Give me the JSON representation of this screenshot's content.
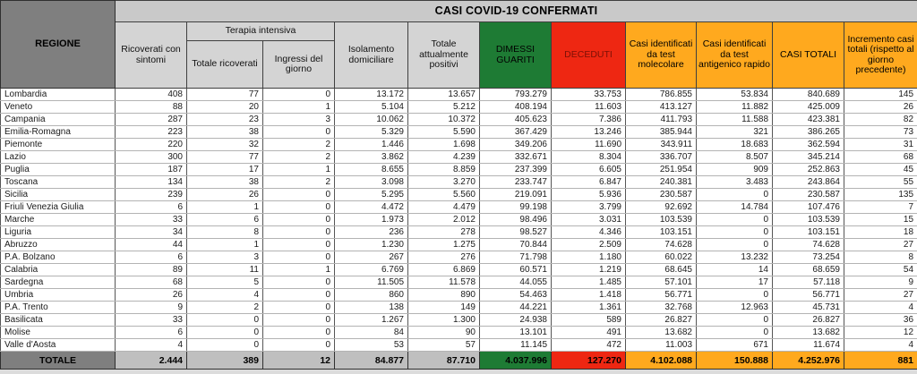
{
  "colors": {
    "green": "#1e7b34",
    "red": "#ee2712",
    "red-text": "#7b1006",
    "orange": "#ffa91e",
    "grey-dark": "#7f7f7f",
    "grey-band": "#c9c9c9",
    "grey-sub": "#d4d4d4",
    "grey-total": "#bfbfbf"
  },
  "chart_data": {
    "type": "table",
    "title": "CASI COVID-19 CONFERMATI",
    "group_header": "Terapia intensiva",
    "columns": [
      "REGIONE",
      "Ricoverati con sintomi",
      "Totale ricoverati",
      "Ingressi del giorno",
      "Isolamento domiciliare",
      "Totale attualmente positivi",
      "DIMESSI GUARITI",
      "DECEDUTI",
      "Casi identificati da test molecolare",
      "Casi identificati da test antigenico rapido",
      "CASI TOTALI",
      "Incremento casi totali (rispetto al giorno precedente)"
    ],
    "rows": [
      [
        "Lombardia",
        "408",
        "77",
        "0",
        "13.172",
        "13.657",
        "793.279",
        "33.753",
        "786.855",
        "53.834",
        "840.689",
        "145"
      ],
      [
        "Veneto",
        "88",
        "20",
        "1",
        "5.104",
        "5.212",
        "408.194",
        "11.603",
        "413.127",
        "11.882",
        "425.009",
        "26"
      ],
      [
        "Campania",
        "287",
        "23",
        "3",
        "10.062",
        "10.372",
        "405.623",
        "7.386",
        "411.793",
        "11.588",
        "423.381",
        "82"
      ],
      [
        "Emilia-Romagna",
        "223",
        "38",
        "0",
        "5.329",
        "5.590",
        "367.429",
        "13.246",
        "385.944",
        "321",
        "386.265",
        "73"
      ],
      [
        "Piemonte",
        "220",
        "32",
        "2",
        "1.446",
        "1.698",
        "349.206",
        "11.690",
        "343.911",
        "18.683",
        "362.594",
        "31"
      ],
      [
        "Lazio",
        "300",
        "77",
        "2",
        "3.862",
        "4.239",
        "332.671",
        "8.304",
        "336.707",
        "8.507",
        "345.214",
        "68"
      ],
      [
        "Puglia",
        "187",
        "17",
        "1",
        "8.655",
        "8.859",
        "237.399",
        "6.605",
        "251.954",
        "909",
        "252.863",
        "45"
      ],
      [
        "Toscana",
        "134",
        "38",
        "2",
        "3.098",
        "3.270",
        "233.747",
        "6.847",
        "240.381",
        "3.483",
        "243.864",
        "55"
      ],
      [
        "Sicilia",
        "239",
        "26",
        "0",
        "5.295",
        "5.560",
        "219.091",
        "5.936",
        "230.587",
        "0",
        "230.587",
        "135"
      ],
      [
        "Friuli Venezia Giulia",
        "6",
        "1",
        "0",
        "4.472",
        "4.479",
        "99.198",
        "3.799",
        "92.692",
        "14.784",
        "107.476",
        "7"
      ],
      [
        "Marche",
        "33",
        "6",
        "0",
        "1.973",
        "2.012",
        "98.496",
        "3.031",
        "103.539",
        "0",
        "103.539",
        "15"
      ],
      [
        "Liguria",
        "34",
        "8",
        "0",
        "236",
        "278",
        "98.527",
        "4.346",
        "103.151",
        "0",
        "103.151",
        "18"
      ],
      [
        "Abruzzo",
        "44",
        "1",
        "0",
        "1.230",
        "1.275",
        "70.844",
        "2.509",
        "74.628",
        "0",
        "74.628",
        "27"
      ],
      [
        "P.A. Bolzano",
        "6",
        "3",
        "0",
        "267",
        "276",
        "71.798",
        "1.180",
        "60.022",
        "13.232",
        "73.254",
        "8"
      ],
      [
        "Calabria",
        "89",
        "11",
        "1",
        "6.769",
        "6.869",
        "60.571",
        "1.219",
        "68.645",
        "14",
        "68.659",
        "54"
      ],
      [
        "Sardegna",
        "68",
        "5",
        "0",
        "11.505",
        "11.578",
        "44.055",
        "1.485",
        "57.101",
        "17",
        "57.118",
        "9"
      ],
      [
        "Umbria",
        "26",
        "4",
        "0",
        "860",
        "890",
        "54.463",
        "1.418",
        "56.771",
        "0",
        "56.771",
        "27"
      ],
      [
        "P.A. Trento",
        "9",
        "2",
        "0",
        "138",
        "149",
        "44.221",
        "1.361",
        "32.768",
        "12.963",
        "45.731",
        "4"
      ],
      [
        "Basilicata",
        "33",
        "0",
        "0",
        "1.267",
        "1.300",
        "24.938",
        "589",
        "26.827",
        "0",
        "26.827",
        "36"
      ],
      [
        "Molise",
        "6",
        "0",
        "0",
        "84",
        "90",
        "13.101",
        "491",
        "13.682",
        "0",
        "13.682",
        "12"
      ],
      [
        "Valle d'Aosta",
        "4",
        "0",
        "0",
        "53",
        "57",
        "11.145",
        "472",
        "11.003",
        "671",
        "11.674",
        "4"
      ]
    ],
    "total_row": [
      "TOTALE",
      "2.444",
      "389",
      "12",
      "84.877",
      "87.710",
      "4.037.996",
      "127.270",
      "4.102.088",
      "150.888",
      "4.252.976",
      "881"
    ]
  }
}
